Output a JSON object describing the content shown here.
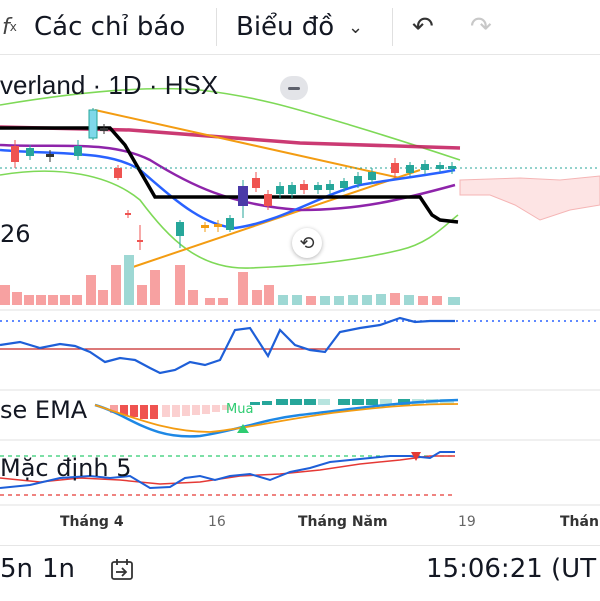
{
  "toolbar": {
    "indicators_label": "Các chỉ báo",
    "chart_type_label": "Biểu đồ",
    "fx_icon": "function-icon",
    "undo_icon": "undo-icon",
    "redo_icon": "redo-icon"
  },
  "legend": {
    "title": "verland · 1D · HSX",
    "partial_value": "26",
    "ema_label": "se EMA",
    "buy_label": "Mua",
    "macd_label": "Mặc định 5"
  },
  "time_axis": {
    "ticks": [
      "Tháng 4",
      "16",
      "Tháng Năm",
      "19",
      "Thán"
    ]
  },
  "bottom_bar": {
    "interval_5m": "5n",
    "interval_1m": "1n",
    "goto_icon": "go-to-date-icon",
    "clock": "15:06:21 (UT"
  },
  "colors": {
    "up": "#26a69a",
    "down": "#ef5350",
    "ema_orange": "#f39c12",
    "ma_purple": "#8e24aa",
    "ma_blue": "#2962ff",
    "bollinger_green": "#7ed957",
    "price_line_black": "#000000",
    "resistance_red": "#c2185b"
  }
}
